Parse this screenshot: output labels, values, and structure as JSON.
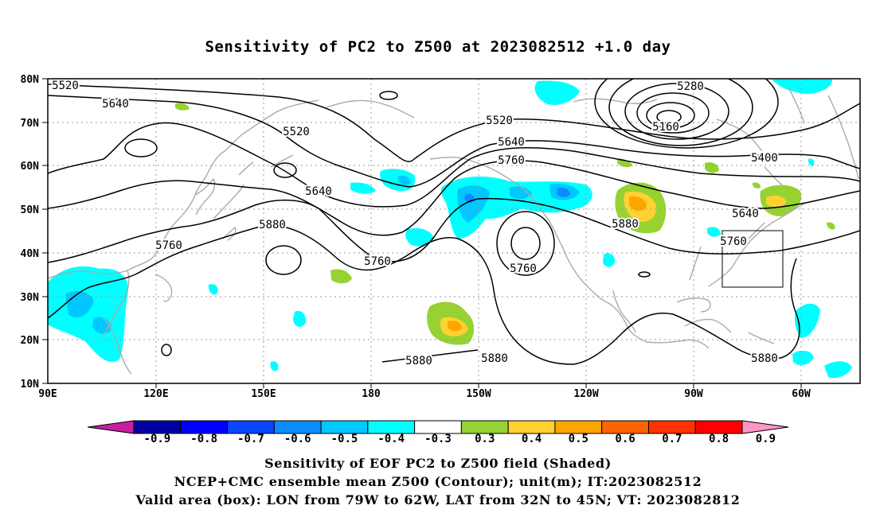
{
  "title": "Sensitivity of PC2 to Z500 at 2023082512 +1.0 day",
  "lat_labels": [
    "80N",
    "70N",
    "60N",
    "50N",
    "40N",
    "30N",
    "20N",
    "10N"
  ],
  "lon_labels": [
    "90E",
    "120E",
    "150E",
    "180",
    "150W",
    "120W",
    "90W",
    "60W"
  ],
  "contour_labels": [
    "5520",
    "5640",
    "5520",
    "5640",
    "5760",
    "5880",
    "5760",
    "5520",
    "5640",
    "5760",
    "5760",
    "5280",
    "5160",
    "5400",
    "5640",
    "5760",
    "5880",
    "5880",
    "5880",
    "5880"
  ],
  "colorbar": {
    "labels": [
      "-0.9",
      "-0.8",
      "-0.7",
      "-0.6",
      "-0.5",
      "-0.4",
      "-0.3",
      "0.3",
      "0.4",
      "0.5",
      "0.6",
      "0.7",
      "0.8",
      "0.9"
    ],
    "colors": [
      "#0000a0",
      "#0000ff",
      "#0a46ff",
      "#0a8cff",
      "#00c8ff",
      "#00ffff",
      "#ffffff",
      "#96d232",
      "#ffd232",
      "#ffa500",
      "#ff6400",
      "#ff3200",
      "#ff0000"
    ],
    "low_end_color": "#c81ea0",
    "high_end_color": "#ff96c8"
  },
  "valid_box": {
    "lon_west": -79,
    "lon_east": -62,
    "lat_south": 32,
    "lat_north": 45
  },
  "captions": [
    "Sensitivity of EOF PC2 to Z500 field (Shaded)",
    "NCEP+CMC ensemble mean Z500 (Contour); unit(m); IT:2023082512",
    "Valid area (box): LON from 79W to 62W, LAT from 32N to 45N; VT: 2023082812"
  ]
}
